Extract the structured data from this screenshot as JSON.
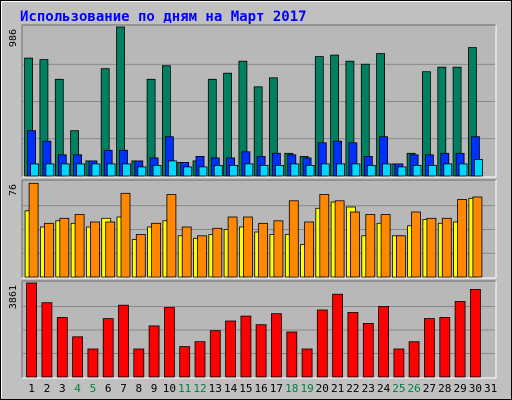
{
  "chart_data": {
    "type": "bar",
    "title": "Использование по дням на Март 2017",
    "colors": {
      "background": "#c0c0c0",
      "plot_background": "#b8b8b8",
      "title": "#0000ff",
      "weekday_label": "#000000",
      "weekend_label": "#008040",
      "hits": "#008060",
      "files": "#0030ff",
      "pages": "#00d8ff",
      "visits": "#ffff00",
      "sites": "#ff8800",
      "kbytes": "#ff0000"
    },
    "x": [
      "1",
      "2",
      "3",
      "4",
      "5",
      "6",
      "7",
      "8",
      "9",
      "10",
      "11",
      "12",
      "13",
      "14",
      "15",
      "16",
      "17",
      "18",
      "19",
      "20",
      "21",
      "22",
      "23",
      "24",
      "25",
      "26",
      "27",
      "28",
      "29",
      "30",
      "31"
    ],
    "weekend_days": [
      "4",
      "5",
      "11",
      "12",
      "18",
      "19",
      "25",
      "26"
    ],
    "panels": [
      {
        "max_label": "986",
        "ylim": [
          0,
          986
        ],
        "series": [
          {
            "values": [
              780,
              770,
              640,
              300,
              100,
              710,
              986,
              100,
              640,
              730,
              90,
              100,
              640,
              680,
              760,
              590,
              650,
              150,
              130,
              790,
              800,
              760,
              740,
              810,
              80,
              150,
              690,
              720,
              720,
              850,
              0
            ]
          },
          {
            "values": [
              300,
              230,
              140,
              140,
              100,
              170,
              170,
              100,
              120,
              260,
              90,
              130,
              120,
              120,
              160,
              130,
              150,
              140,
              120,
              220,
              230,
              220,
              130,
              260,
              80,
              140,
              140,
              150,
              150,
              260,
              0
            ]
          },
          {
            "values": [
              80,
              80,
              80,
              80,
              80,
              80,
              80,
              60,
              70,
              100,
              60,
              60,
              70,
              70,
              80,
              70,
              70,
              80,
              70,
              80,
              80,
              80,
              70,
              80,
              60,
              70,
              70,
              80,
              80,
              110,
              0
            ]
          }
        ]
      },
      {
        "max_label": "76",
        "ylim": [
          0,
          76
        ],
        "series": [
          {
            "values": [
              53,
              40,
              45,
              43,
              40,
              47,
              48,
              30,
              40,
              45,
              33,
              31,
              34,
              38,
              40,
              36,
              34,
              34,
              26,
              55,
              60,
              56,
              33,
              43,
              33,
              41,
              46,
              43,
              44,
              63,
              0
            ]
          },
          {
            "values": [
              75,
              43,
              47,
              50,
              44,
              44,
              67,
              34,
              43,
              66,
              40,
              33,
              39,
              48,
              48,
              43,
              45,
              61,
              44,
              66,
              61,
              52,
              50,
              50,
              33,
              52,
              47,
              47,
              62,
              64,
              0
            ]
          }
        ]
      },
      {
        "max_label": "3861",
        "ylim": [
          0,
          3861
        ],
        "series": [
          {
            "values": [
              3861,
              3050,
              2450,
              1650,
              1150,
              2400,
              2950,
              1150,
              2100,
              2850,
              1250,
              1450,
              1900,
              2300,
              2500,
              2150,
              2600,
              1850,
              1150,
              2750,
              3400,
              2650,
              2200,
              2900,
              1150,
              1450,
              2400,
              2450,
              3100,
              3600,
              0
            ]
          }
        ]
      }
    ]
  }
}
